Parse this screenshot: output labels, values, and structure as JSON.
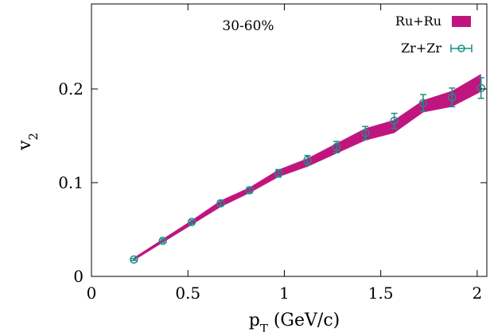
{
  "chart_data": {
    "type": "line",
    "annotation": "30-60%",
    "xlabel": {
      "main": "p",
      "sub": "T",
      "unit": " (GeV/c)"
    },
    "ylabel": {
      "main": "v",
      "sub": "2"
    },
    "xlim": [
      0,
      2.05
    ],
    "ylim": [
      0,
      0.2
    ],
    "xticks": [
      0,
      0.5,
      1,
      1.5,
      2
    ],
    "xtick_labels": [
      "0",
      "0.5",
      "1",
      "1.5",
      "2"
    ],
    "yticks": [
      0,
      0.1,
      0.2
    ],
    "ytick_labels": [
      "0",
      "0.1",
      "0.2"
    ],
    "legend_position": "top-right",
    "series": [
      {
        "name": "Ru+Ru",
        "style": "band",
        "color": "#c0157f",
        "x": [
          0.22,
          0.37,
          0.52,
          0.67,
          0.82,
          0.97,
          1.12,
          1.27,
          1.42,
          1.57,
          1.72,
          1.87,
          2.02
        ],
        "y_low": [
          0.017,
          0.036,
          0.055,
          0.074,
          0.089,
          0.106,
          0.117,
          0.131,
          0.145,
          0.153,
          0.175,
          0.181,
          0.197
        ],
        "y_high": [
          0.02,
          0.04,
          0.06,
          0.081,
          0.095,
          0.114,
          0.126,
          0.142,
          0.158,
          0.167,
          0.188,
          0.198,
          0.216
        ]
      },
      {
        "name": "Zr+Zr",
        "style": "points-with-errorbars",
        "color": "#1a8f8a",
        "x": [
          0.22,
          0.37,
          0.52,
          0.67,
          0.82,
          0.97,
          1.12,
          1.27,
          1.42,
          1.57,
          1.72,
          1.87,
          2.02
        ],
        "y": [
          0.018,
          0.038,
          0.058,
          0.078,
          0.092,
          0.11,
          0.124,
          0.138,
          0.153,
          0.166,
          0.185,
          0.191,
          0.201
        ],
        "yerr": [
          0.001,
          0.002,
          0.002,
          0.003,
          0.003,
          0.004,
          0.005,
          0.006,
          0.007,
          0.008,
          0.009,
          0.01,
          0.011
        ]
      }
    ]
  }
}
